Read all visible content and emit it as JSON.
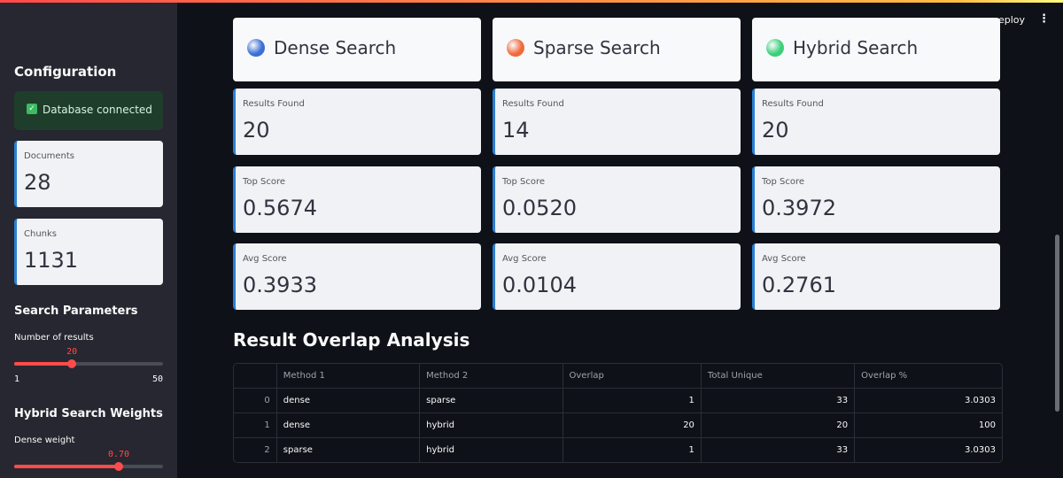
{
  "header": {
    "deploy": "eploy"
  },
  "sidebar": {
    "title": "Configuration",
    "status": "Database connected",
    "metrics": [
      {
        "label": "Documents",
        "value": "28"
      },
      {
        "label": "Chunks",
        "value": "1131"
      }
    ],
    "search_parameters": {
      "title": "Search Parameters",
      "slider_label": "Number of results",
      "value": 20,
      "min": 1,
      "max": 50
    },
    "hybrid_weights": {
      "title": "Hybrid Search Weights",
      "slider_label": "Dense weight",
      "value": "0.70"
    }
  },
  "methods": [
    {
      "name": "Dense Search",
      "color": "#3b6fd4",
      "metrics": [
        {
          "label": "Results Found",
          "value": "20"
        },
        {
          "label": "Top Score",
          "value": "0.5674"
        },
        {
          "label": "Avg Score",
          "value": "0.3933"
        }
      ]
    },
    {
      "name": "Sparse Search",
      "color": "#f06a3a",
      "metrics": [
        {
          "label": "Results Found",
          "value": "14"
        },
        {
          "label": "Top Score",
          "value": "0.0520"
        },
        {
          "label": "Avg Score",
          "value": "0.0104"
        }
      ]
    },
    {
      "name": "Hybrid Search",
      "color": "#3ccf7a",
      "metrics": [
        {
          "label": "Results Found",
          "value": "20"
        },
        {
          "label": "Top Score",
          "value": "0.3972"
        },
        {
          "label": "Avg Score",
          "value": "0.2761"
        }
      ]
    }
  ],
  "overlap": {
    "title": "Result Overlap Analysis",
    "columns": [
      "Method 1",
      "Method 2",
      "Overlap",
      "Total Unique",
      "Overlap %"
    ],
    "rows": [
      {
        "index": "0",
        "cells": [
          "dense",
          "sparse",
          "1",
          "33",
          "3.0303"
        ]
      },
      {
        "index": "1",
        "cells": [
          "dense",
          "hybrid",
          "20",
          "20",
          "100"
        ]
      },
      {
        "index": "2",
        "cells": [
          "sparse",
          "hybrid",
          "1",
          "33",
          "3.0303"
        ]
      }
    ]
  }
}
